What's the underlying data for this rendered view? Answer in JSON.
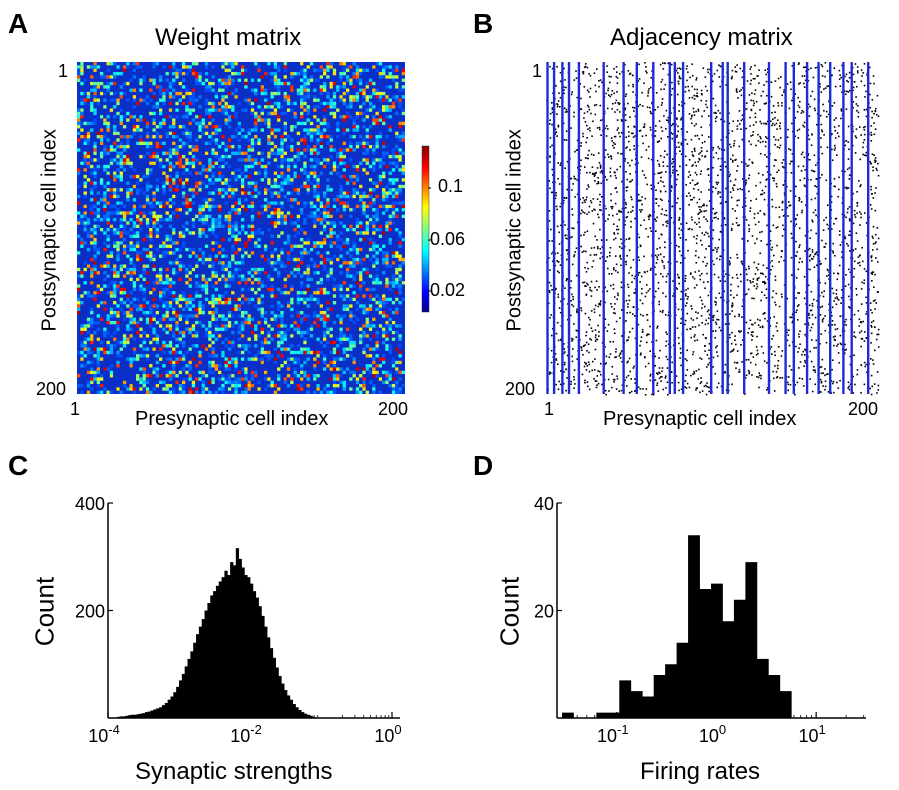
{
  "panels": {
    "A": {
      "letter": "A",
      "title": "Weight matrix",
      "xlabel": "Presynaptic cell index",
      "ylabel": "Postsynaptic cell index",
      "x_ticks": [
        "1",
        "200"
      ],
      "y_ticks": [
        "1",
        "200"
      ],
      "colorbar_ticks": [
        "0.1",
        "0.06",
        "0.02"
      ]
    },
    "B": {
      "letter": "B",
      "title": "Adjacency matrix",
      "xlabel": "Presynaptic cell index",
      "ylabel": "Postsynaptic cell index",
      "x_ticks": [
        "1",
        "200"
      ],
      "y_ticks": [
        "1",
        "200"
      ]
    },
    "C": {
      "letter": "C"
    },
    "D": {
      "letter": "D"
    }
  },
  "chart_data": [
    {
      "id": "A",
      "type": "heatmap",
      "title": "Weight matrix",
      "xlabel": "Presynaptic cell index",
      "ylabel": "Postsynaptic cell index",
      "x_range": [
        1,
        200
      ],
      "y_range": [
        1,
        200
      ],
      "colorbar": {
        "min": 0,
        "max": 0.14,
        "ticks": [
          0.1,
          0.06,
          0.02
        ],
        "colormap": "jet"
      }
    },
    {
      "id": "B",
      "type": "heatmap",
      "title": "Adjacency matrix",
      "xlabel": "Presynaptic cell index",
      "ylabel": "Postsynaptic cell index",
      "x_range": [
        1,
        200
      ],
      "y_range": [
        1,
        200
      ],
      "highlight_columns": [
        1,
        5,
        10,
        14,
        20,
        35,
        47,
        55,
        65,
        75,
        78,
        83,
        100,
        107,
        110,
        120,
        135,
        145,
        150,
        158,
        165,
        172,
        180,
        185,
        195
      ],
      "highlight_color": "#1f2bd8"
    },
    {
      "id": "C",
      "type": "bar",
      "xlabel": "Synaptic strengths",
      "ylabel": "Count",
      "x_scale": "log",
      "x_tick_exponents": [
        -4,
        -2,
        0
      ],
      "y_ticks": [
        200,
        400
      ],
      "ylim": [
        0,
        400
      ],
      "xlim_log10": [
        -4,
        0
      ],
      "bin_width_log10": 0.04,
      "bins_log10_start": [
        -3.88,
        -3.84,
        -3.8,
        -3.76,
        -3.72,
        -3.68,
        -3.64,
        -3.6,
        -3.56,
        -3.52,
        -3.48,
        -3.44,
        -3.4,
        -3.36,
        -3.32,
        -3.28,
        -3.24,
        -3.2,
        -3.16,
        -3.12,
        -3.08,
        -3.04,
        -3.0,
        -2.96,
        -2.92,
        -2.88,
        -2.84,
        -2.8,
        -2.76,
        -2.72,
        -2.68,
        -2.64,
        -2.6,
        -2.56,
        -2.52,
        -2.48,
        -2.44,
        -2.4,
        -2.36,
        -2.32,
        -2.28,
        -2.24,
        -2.2,
        -2.16,
        -2.12,
        -2.08,
        -2.04,
        -2.0,
        -1.96,
        -1.92,
        -1.88,
        -1.84,
        -1.8,
        -1.76,
        -1.72,
        -1.68,
        -1.64,
        -1.6,
        -1.56,
        -1.52,
        -1.48,
        -1.44,
        -1.4,
        -1.36,
        -1.32,
        -1.28,
        -1.24,
        -1.2,
        -1.16,
        -1.12
      ],
      "counts": [
        2,
        3,
        3,
        4,
        5,
        6,
        6,
        7,
        8,
        9,
        11,
        12,
        14,
        16,
        18,
        20,
        24,
        28,
        34,
        40,
        48,
        58,
        70,
        82,
        96,
        110,
        124,
        140,
        156,
        170,
        184,
        200,
        214,
        228,
        236,
        246,
        254,
        262,
        274,
        266,
        290,
        284,
        316,
        296,
        280,
        266,
        262,
        250,
        236,
        224,
        208,
        190,
        170,
        150,
        130,
        112,
        94,
        78,
        64,
        52,
        42,
        34,
        26,
        20,
        15,
        11,
        8,
        6,
        4,
        2
      ]
    },
    {
      "id": "D",
      "type": "bar",
      "xlabel": "Firing rates",
      "ylabel": "Count",
      "x_scale": "log",
      "x_tick_exponents": [
        -1,
        0,
        1
      ],
      "y_ticks": [
        20,
        40
      ],
      "ylim": [
        0,
        40
      ],
      "xlim_log10": [
        -1.6,
        1.5
      ],
      "bin_width_log10": 0.115,
      "bins_log10_start": [
        -1.55,
        -1.435,
        -1.32,
        -1.205,
        -1.09,
        -0.975,
        -0.86,
        -0.745,
        -0.63,
        -0.515,
        -0.4,
        -0.285,
        -0.17,
        -0.055,
        0.06,
        0.175,
        0.29,
        0.405,
        0.52,
        0.635,
        0.75
      ],
      "counts": [
        1,
        0,
        0,
        1,
        1,
        7,
        5,
        4,
        8,
        10,
        14,
        34,
        24,
        25,
        18,
        22,
        29,
        11,
        8,
        5,
        0
      ]
    }
  ]
}
